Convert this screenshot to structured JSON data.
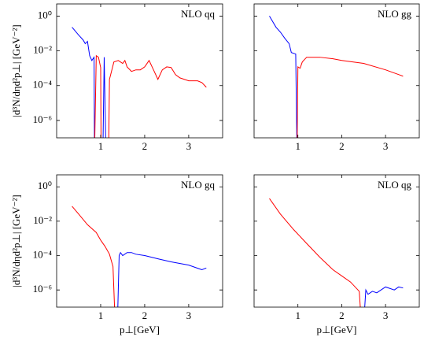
{
  "chart_data": [
    {
      "type": "line",
      "title": "NLO qq",
      "y_label": "|d³N/dηd²p⊥| [GeV⁻²]",
      "log_y": true,
      "xlim": [
        0,
        3.77
      ],
      "ylim": [
        1e-07,
        5
      ],
      "xticks": [
        1,
        2,
        3
      ],
      "yticks": [
        {
          "value": 1,
          "label": "10⁰"
        },
        {
          "value": 0.01,
          "label": "10⁻²"
        },
        {
          "value": 0.0001,
          "label": "10⁻⁴"
        },
        {
          "value": 1e-06,
          "label": "10⁻⁶"
        }
      ],
      "series": [
        {
          "color": "#0000ff",
          "x": [
            0.35,
            0.5,
            0.6,
            0.65,
            0.7,
            0.75,
            0.8,
            0.85,
            0.86,
            0.95,
            1.05,
            1.08,
            1.12
          ],
          "values": [
            0.23,
            0.081,
            0.043,
            0.026,
            0.035,
            0.0053,
            0.0028,
            0.0043,
            1e-08,
            null,
            1e-08,
            0.0043,
            1e-08
          ]
        },
        {
          "color": "#ff0000",
          "x": [
            0.86,
            0.9,
            0.95,
            1.0,
            1.01,
            1.1,
            1.18,
            1.2,
            1.3,
            1.4,
            1.5,
            1.55,
            1.6,
            1.7,
            1.8,
            1.9,
            2.0,
            2.1,
            2.2,
            2.3,
            2.4,
            2.5,
            2.6,
            2.7,
            2.8,
            2.9,
            3.0,
            3.2,
            3.3,
            3.4
          ],
          "values": [
            1e-08,
            0.0053,
            0.0043,
            0.0011,
            1e-08,
            null,
            1e-08,
            0.00023,
            0.0023,
            0.0028,
            0.0019,
            0.0028,
            0.0012,
            0.00066,
            0.00081,
            0.00081,
            0.0012,
            0.0028,
            0.00081,
            0.00023,
            0.00081,
            0.0012,
            0.0011,
            0.00043,
            0.00028,
            0.00023,
            0.00019,
            0.00019,
            0.00015,
            8.1e-05
          ]
        }
      ]
    },
    {
      "type": "line",
      "title": "NLO gg",
      "log_y": true,
      "xlim": [
        0,
        3.77
      ],
      "ylim": [
        1e-07,
        5
      ],
      "xticks": [
        1,
        2,
        3
      ],
      "yticks": [
        1,
        0.01,
        0.0001,
        1e-06
      ],
      "series": [
        {
          "color": "#0000ff",
          "x": [
            0.35,
            0.5,
            0.6,
            0.7,
            0.8,
            0.85,
            0.95,
            0.98
          ],
          "values": [
            1.0,
            0.23,
            0.12,
            0.053,
            0.026,
            0.008,
            0.0066,
            1e-08
          ]
        },
        {
          "color": "#ff0000",
          "x": [
            0.98,
            1.0,
            1.05,
            1.1,
            1.2,
            1.5,
            1.8,
            2.0,
            2.5,
            3.0,
            3.4
          ],
          "values": [
            1e-08,
            0.0012,
            0.001,
            0.0023,
            0.0043,
            0.0043,
            0.0035,
            0.0028,
            0.0019,
            0.00081,
            0.00035
          ]
        }
      ]
    },
    {
      "type": "line",
      "title": "NLO gq",
      "y_label": "|d³N/dηd²p⊥| [GeV⁻²]",
      "x_label": "p⊥[GeV]",
      "log_y": true,
      "xlim": [
        0,
        3.77
      ],
      "ylim": [
        1e-07,
        5
      ],
      "xticks": [
        1,
        2,
        3
      ],
      "yticks": [
        {
          "value": 1,
          "label": "10⁰"
        },
        {
          "value": 0.01,
          "label": "10⁻²"
        },
        {
          "value": 0.0001,
          "label": "10⁻⁴"
        },
        {
          "value": 1e-06,
          "label": "10⁻⁶"
        }
      ],
      "series": [
        {
          "color": "#ff0000",
          "x": [
            0.35,
            0.5,
            0.7,
            0.9,
            1.0,
            1.1,
            1.2,
            1.28,
            1.33
          ],
          "values": [
            0.074,
            0.026,
            0.0063,
            0.0022,
            0.00079,
            0.00034,
            0.00012,
            2.3e-05,
            1e-08
          ]
        },
        {
          "color": "#0000ff",
          "x": [
            1.38,
            1.42,
            1.45,
            1.5,
            1.6,
            1.7,
            1.8,
            2.0,
            2.3,
            2.6,
            3.0,
            3.3,
            3.4
          ],
          "values": [
            1e-08,
            0.0001,
            0.00015,
            0.0001,
            0.00015,
            0.00015,
            0.00012,
            0.0001,
            6.5e-05,
            4.3e-05,
            2.8e-05,
            1.5e-05,
            1.9e-05
          ]
        }
      ]
    },
    {
      "type": "line",
      "title": "NLO qg",
      "x_label": "p⊥[GeV]",
      "log_y": true,
      "xlim": [
        0,
        3.77
      ],
      "ylim": [
        1e-07,
        5
      ],
      "xticks": [
        1,
        2,
        3
      ],
      "yticks": [
        1,
        0.01,
        0.0001,
        1e-06
      ],
      "series": [
        {
          "color": "#ff0000",
          "x": [
            0.35,
            0.6,
            0.9,
            1.2,
            1.5,
            1.8,
            2.0,
            2.2,
            2.4,
            2.45
          ],
          "values": [
            0.21,
            0.026,
            0.0033,
            0.00051,
            8e-05,
            1.5e-05,
            6.6e-06,
            2.9e-06,
            8.3e-07,
            1e-08
          ]
        },
        {
          "color": "#0000ff",
          "x": [
            2.5,
            2.55,
            2.6,
            2.7,
            2.8,
            3.0,
            3.2,
            3.3,
            3.4
          ],
          "values": [
            1e-08,
            1e-06,
            5.6e-07,
            8.3e-07,
            6.8e-07,
            1.5e-06,
            1e-06,
            1.5e-06,
            1.3e-06
          ]
        }
      ]
    }
  ]
}
